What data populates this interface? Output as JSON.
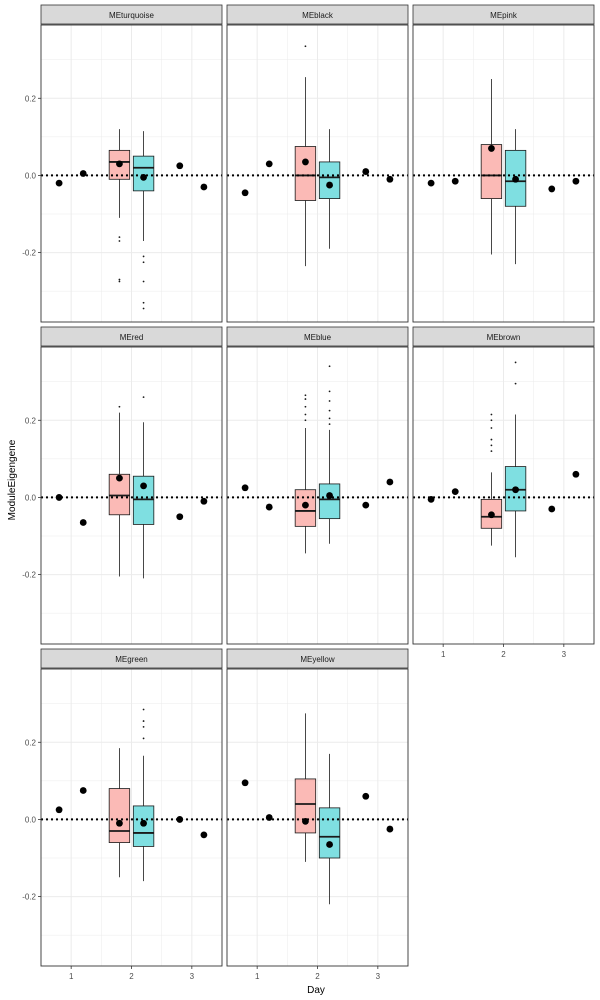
{
  "labels": {
    "ylabel": "ModuleEigengene",
    "xlabel": "Day"
  },
  "colors": {
    "group1_fill": "#F8766D",
    "group2_fill": "#00BFC4",
    "strip_fill": "#d9d9d9",
    "grid": "#ebebeb",
    "point": "#000000"
  },
  "chart_data": {
    "type": "faceted boxplot with points",
    "xlim": [
      0.5,
      3.5
    ],
    "ylim": [
      -0.38,
      0.39
    ],
    "x_ticks": [
      1,
      2,
      3
    ],
    "y_ticks": [
      -0.2,
      0.0,
      0.2
    ],
    "y_tick_labels": [
      "-0.2",
      "0.0",
      "0.2"
    ],
    "reference_line": 0,
    "box_positions": [
      1.8,
      2.2
    ],
    "facets": [
      {
        "name": "MEturquoise",
        "boxes": [
          {
            "q1": -0.01,
            "median": 0.035,
            "q3": 0.065,
            "whisker_low": -0.11,
            "whisker_high": 0.12,
            "outliers": [
              -0.16,
              -0.17,
              -0.27,
              -0.275
            ]
          },
          {
            "q1": -0.04,
            "median": 0.02,
            "q3": 0.05,
            "whisker_low": -0.17,
            "whisker_high": 0.115,
            "outliers": [
              -0.21,
              -0.225,
              -0.275,
              -0.33,
              -0.345
            ]
          }
        ],
        "points": [
          {
            "x": 0.8,
            "y": -0.02
          },
          {
            "x": 1.2,
            "y": 0.005
          },
          {
            "x": 1.8,
            "y": 0.03
          },
          {
            "x": 2.2,
            "y": -0.005
          },
          {
            "x": 2.8,
            "y": 0.025
          },
          {
            "x": 3.2,
            "y": -0.03
          }
        ]
      },
      {
        "name": "MEblack",
        "boxes": [
          {
            "q1": -0.065,
            "median": 0.0,
            "q3": 0.075,
            "whisker_low": -0.235,
            "whisker_high": 0.255,
            "outliers": [
              0.335
            ]
          },
          {
            "q1": -0.06,
            "median": -0.005,
            "q3": 0.035,
            "whisker_low": -0.19,
            "whisker_high": 0.12,
            "outliers": []
          }
        ],
        "points": [
          {
            "x": 0.8,
            "y": -0.045
          },
          {
            "x": 1.2,
            "y": 0.03
          },
          {
            "x": 1.8,
            "y": 0.035
          },
          {
            "x": 2.2,
            "y": -0.025
          },
          {
            "x": 2.8,
            "y": 0.01
          },
          {
            "x": 3.2,
            "y": -0.01
          }
        ]
      },
      {
        "name": "MEpink",
        "boxes": [
          {
            "q1": -0.06,
            "median": 0.0,
            "q3": 0.08,
            "whisker_low": -0.205,
            "whisker_high": 0.25,
            "outliers": []
          },
          {
            "q1": -0.08,
            "median": -0.015,
            "q3": 0.065,
            "whisker_low": -0.23,
            "whisker_high": 0.12,
            "outliers": []
          }
        ],
        "points": [
          {
            "x": 0.8,
            "y": -0.02
          },
          {
            "x": 1.2,
            "y": -0.015
          },
          {
            "x": 1.8,
            "y": 0.07
          },
          {
            "x": 2.2,
            "y": -0.01
          },
          {
            "x": 2.8,
            "y": -0.035
          },
          {
            "x": 3.2,
            "y": -0.015
          }
        ]
      },
      {
        "name": "MEred",
        "boxes": [
          {
            "q1": -0.045,
            "median": 0.005,
            "q3": 0.06,
            "whisker_low": -0.205,
            "whisker_high": 0.22,
            "outliers": [
              0.235
            ]
          },
          {
            "q1": -0.07,
            "median": -0.005,
            "q3": 0.055,
            "whisker_low": -0.21,
            "whisker_high": 0.195,
            "outliers": [
              0.26
            ]
          }
        ],
        "points": [
          {
            "x": 0.8,
            "y": 0.0
          },
          {
            "x": 1.2,
            "y": -0.065
          },
          {
            "x": 1.8,
            "y": 0.05
          },
          {
            "x": 2.2,
            "y": 0.03
          },
          {
            "x": 2.8,
            "y": -0.05
          },
          {
            "x": 3.2,
            "y": -0.01
          }
        ]
      },
      {
        "name": "MEblue",
        "boxes": [
          {
            "q1": -0.075,
            "median": -0.035,
            "q3": 0.02,
            "whisker_low": -0.145,
            "whisker_high": 0.18,
            "outliers": [
              0.2,
              0.215,
              0.235,
              0.255,
              0.265
            ]
          },
          {
            "q1": -0.055,
            "median": -0.005,
            "q3": 0.035,
            "whisker_low": -0.12,
            "whisker_high": 0.175,
            "outliers": [
              0.19,
              0.205,
              0.225,
              0.25,
              0.275,
              0.34
            ]
          }
        ],
        "points": [
          {
            "x": 0.8,
            "y": 0.025
          },
          {
            "x": 1.2,
            "y": -0.025
          },
          {
            "x": 1.8,
            "y": -0.02
          },
          {
            "x": 2.2,
            "y": 0.005
          },
          {
            "x": 2.8,
            "y": -0.02
          },
          {
            "x": 3.2,
            "y": 0.04
          }
        ]
      },
      {
        "name": "MEbrown",
        "boxes": [
          {
            "q1": -0.08,
            "median": -0.05,
            "q3": -0.005,
            "whisker_low": -0.125,
            "whisker_high": 0.065,
            "outliers": [
              0.12,
              0.135,
              0.15,
              0.18,
              0.2,
              0.215
            ]
          },
          {
            "q1": -0.035,
            "median": 0.02,
            "q3": 0.08,
            "whisker_low": -0.155,
            "whisker_high": 0.215,
            "outliers": [
              0.295,
              0.35
            ]
          }
        ],
        "points": [
          {
            "x": 0.8,
            "y": -0.005
          },
          {
            "x": 1.2,
            "y": 0.015
          },
          {
            "x": 1.8,
            "y": -0.045
          },
          {
            "x": 2.2,
            "y": 0.02
          },
          {
            "x": 2.8,
            "y": -0.03
          },
          {
            "x": 3.2,
            "y": 0.06
          }
        ]
      },
      {
        "name": "MEgreen",
        "boxes": [
          {
            "q1": -0.06,
            "median": -0.03,
            "q3": 0.08,
            "whisker_low": -0.15,
            "whisker_high": 0.185,
            "outliers": []
          },
          {
            "q1": -0.07,
            "median": -0.035,
            "q3": 0.035,
            "whisker_low": -0.16,
            "whisker_high": 0.165,
            "outliers": [
              0.21,
              0.24,
              0.255,
              0.285
            ]
          }
        ],
        "points": [
          {
            "x": 0.8,
            "y": 0.025
          },
          {
            "x": 1.2,
            "y": 0.075
          },
          {
            "x": 1.8,
            "y": -0.01
          },
          {
            "x": 2.2,
            "y": -0.01
          },
          {
            "x": 2.8,
            "y": 0.0
          },
          {
            "x": 3.2,
            "y": -0.04
          }
        ]
      },
      {
        "name": "MEyellow",
        "boxes": [
          {
            "q1": -0.035,
            "median": 0.04,
            "q3": 0.105,
            "whisker_low": -0.11,
            "whisker_high": 0.275,
            "outliers": []
          },
          {
            "q1": -0.1,
            "median": -0.045,
            "q3": 0.03,
            "whisker_low": -0.22,
            "whisker_high": 0.17,
            "outliers": []
          }
        ],
        "points": [
          {
            "x": 0.8,
            "y": 0.095
          },
          {
            "x": 1.2,
            "y": 0.005
          },
          {
            "x": 1.8,
            "y": -0.005
          },
          {
            "x": 2.2,
            "y": -0.065
          },
          {
            "x": 2.8,
            "y": 0.06
          },
          {
            "x": 3.2,
            "y": -0.025
          }
        ]
      }
    ]
  }
}
